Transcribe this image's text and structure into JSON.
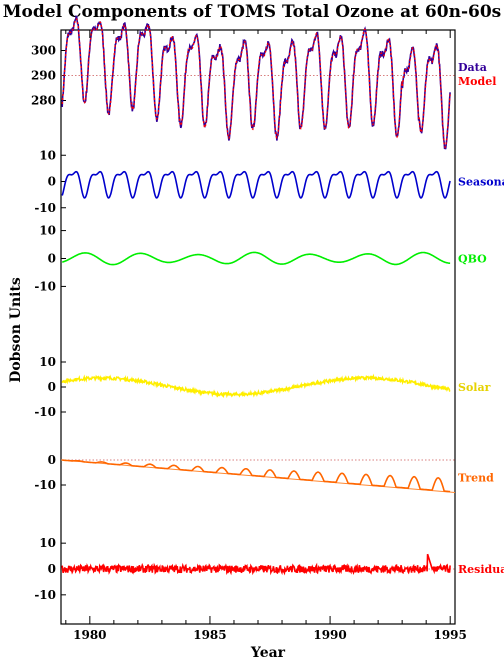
{
  "chart_data": {
    "type": "line",
    "title": "Model Components of TOMS Total Ozone at 60n-60s",
    "xlabel": "Year",
    "ylabel": "Dobson Units",
    "x_range": [
      1978.8,
      1995.2
    ],
    "x_ticks": [
      "1980",
      "1985",
      "1990",
      "1995"
    ],
    "panels": [
      {
        "id": "data-model",
        "ylim": [
          273,
          305
        ],
        "y_ticks": [
          "280",
          "290",
          "300"
        ],
        "series": [
          {
            "name": "Data",
            "color": "#330099",
            "style": "solid",
            "kind": "seasonal_data"
          },
          {
            "name": "Model",
            "color": "#ff0000",
            "style": "dotted",
            "kind": "seasonal_model"
          }
        ],
        "reference_line": 290
      },
      {
        "id": "seasonal",
        "ylim": [
          -12,
          12
        ],
        "y_ticks": [
          "10",
          "0",
          "-10"
        ],
        "series": [
          {
            "name": "Seasonal",
            "color": "#0000cc",
            "style": "solid",
            "kind": "seasonal",
            "amplitude": 5
          }
        ]
      },
      {
        "id": "qbo",
        "ylim": [
          -12,
          12
        ],
        "y_ticks": [
          "10",
          "0",
          "-10"
        ],
        "series": [
          {
            "name": "QBO",
            "color": "#00ee00",
            "style": "solid",
            "kind": "qbo",
            "amplitude": 2.5
          }
        ]
      },
      {
        "id": "solar",
        "ylim": [
          -12,
          12
        ],
        "y_ticks": [
          "10",
          "0",
          "-10"
        ],
        "series": [
          {
            "name": "Solar",
            "color": "#ffee00",
            "style": "solid",
            "kind": "solar",
            "amplitude": 3.5
          }
        ]
      },
      {
        "id": "trend",
        "ylim": [
          -18,
          2
        ],
        "y_ticks": [
          "0",
          "-10"
        ],
        "series": [
          {
            "name": "Trend",
            "color": "#ff6600",
            "style": "solid",
            "kind": "trend"
          }
        ],
        "reference_line": 0,
        "trend_line": [
          [
            1978.8,
            0
          ],
          [
            1995.2,
            -13
          ]
        ]
      },
      {
        "id": "residual",
        "ylim": [
          -12,
          12
        ],
        "y_ticks": [
          "10",
          "0",
          "-10"
        ],
        "series": [
          {
            "name": "Residual",
            "color": "#ff0000",
            "style": "solid",
            "kind": "residual"
          }
        ],
        "reference_line": 0
      }
    ]
  }
}
